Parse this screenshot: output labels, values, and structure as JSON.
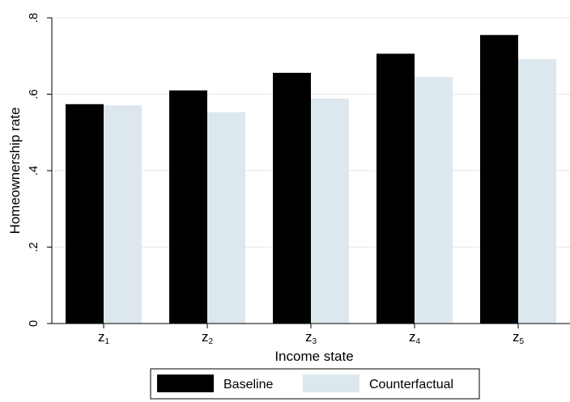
{
  "chart_data": {
    "type": "bar",
    "title": "",
    "categories": [
      {
        "base": "z",
        "sub": "1"
      },
      {
        "base": "z",
        "sub": "2"
      },
      {
        "base": "z",
        "sub": "3"
      },
      {
        "base": "z",
        "sub": "4"
      },
      {
        "base": "z",
        "sub": "5"
      }
    ],
    "series": [
      {
        "name": "Baseline",
        "color": "#000000",
        "values": [
          0.574,
          0.61,
          0.656,
          0.706,
          0.755
        ]
      },
      {
        "name": "Counterfactual",
        "color": "#dce8ed",
        "values": [
          0.571,
          0.553,
          0.589,
          0.645,
          0.692
        ]
      }
    ],
    "xlabel": "Income state",
    "ylabel": "Homeownership rate",
    "ylim": [
      0,
      0.8
    ],
    "yticks": [
      0,
      0.2,
      0.4,
      0.6,
      0.8
    ],
    "ytick_labels": [
      "0",
      ".2",
      ".4",
      ".6",
      ".8"
    ],
    "grid": true,
    "legend_position": "bottom"
  }
}
